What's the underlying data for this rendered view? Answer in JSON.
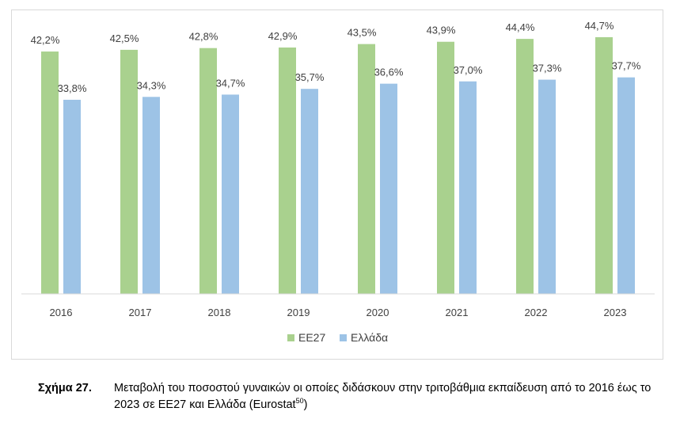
{
  "chart_data": {
    "type": "bar",
    "categories": [
      "2016",
      "2017",
      "2018",
      "2019",
      "2020",
      "2021",
      "2022",
      "2023"
    ],
    "series": [
      {
        "name": "ΕΕ27",
        "color": "#a9d18e",
        "values": [
          42.2,
          42.5,
          42.8,
          42.9,
          43.5,
          43.9,
          44.4,
          44.7
        ],
        "labels": [
          "42,2%",
          "42,5%",
          "42,8%",
          "42,9%",
          "43,5%",
          "43,9%",
          "44,4%",
          "44,7%"
        ]
      },
      {
        "name": "Ελλάδα",
        "color": "#9dc3e6",
        "values": [
          33.8,
          34.3,
          34.7,
          35.7,
          36.6,
          37.0,
          37.3,
          37.7
        ],
        "labels": [
          "33,8%",
          "34,3%",
          "34,7%",
          "35,7%",
          "36,6%",
          "37,0%",
          "37,3%",
          "37,7%"
        ]
      }
    ],
    "title": "",
    "xlabel": "",
    "ylabel": "",
    "ylim": [
      0,
      48
    ],
    "grid": false,
    "legend": "bottom-center"
  },
  "caption": {
    "label": "Σχήμα 27.",
    "text": "Μεταβολή του ποσοστού γυναικών οι οποίες διδάσκουν στην τριτοβάθμια εκπαίδευση από το 2016 έως το 2023 σε ΕΕ27 και Ελλάδα (Eurostat",
    "footnote": "50",
    "closing": ")"
  }
}
